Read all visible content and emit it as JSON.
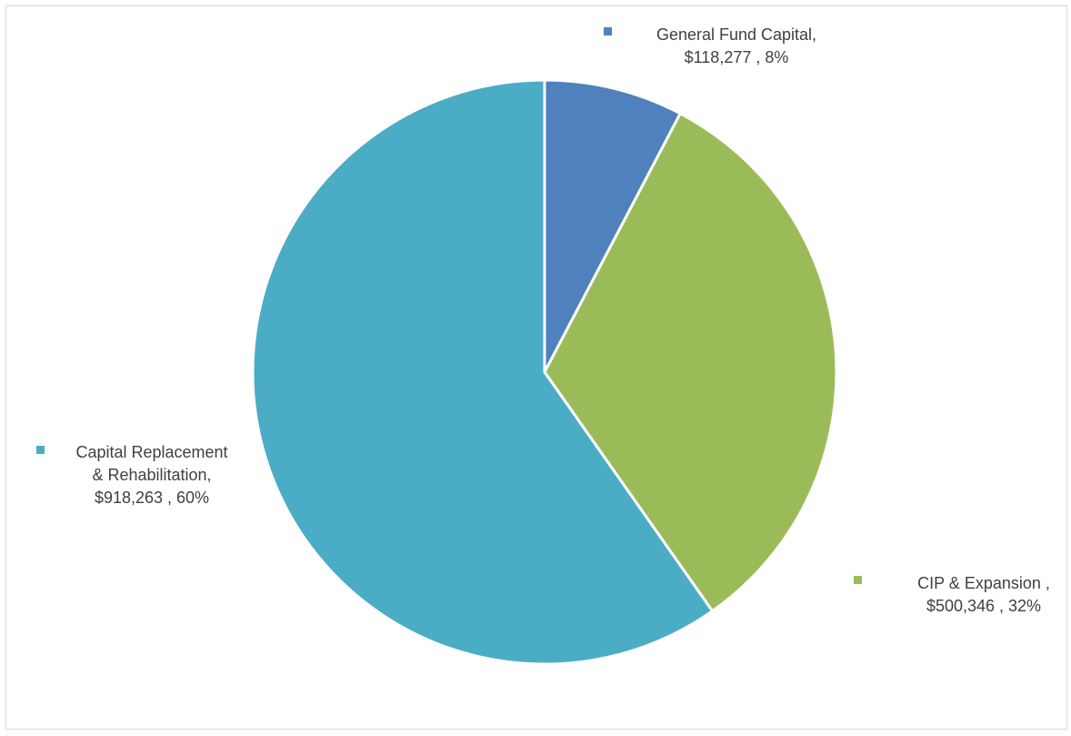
{
  "chart_data": {
    "type": "pie",
    "title": "",
    "slices": [
      {
        "name": "General Fund Capital",
        "value": 118277,
        "percent": 8,
        "color": "#4f81bd",
        "label_lines": [
          "General Fund Capital,",
          "$118,277 , 8%"
        ]
      },
      {
        "name": "CIP & Expansion",
        "value": 500346,
        "percent": 32,
        "color": "#9bbb59",
        "label_lines": [
          "CIP & Expansion ,",
          "$500,346 , 32%"
        ]
      },
      {
        "name": "Capital Replacement & Rehabilitation",
        "value": 918263,
        "percent": 60,
        "color": "#4bacc6",
        "label_lines": [
          "Capital Replacement",
          "& Rehabilitation,",
          "$918,263 , 60%"
        ]
      }
    ],
    "start_angle_deg": 0,
    "direction": "clockwise",
    "slice_border_color": "#ffffff",
    "legend": "none",
    "data_labels": "outside with color key"
  }
}
